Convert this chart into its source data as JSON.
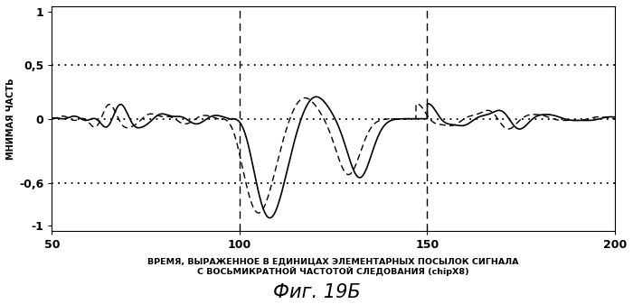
{
  "title": "Фиг. 19Б",
  "xlabel_line1": "ВРЕМЯ, ВЫРАЖЕННОЕ В ЕДИНИЦАХ ЭЛЕМЕНТАРНЫХ ПОСЫЛОК СИГНАЛА",
  "xlabel_line2": "С ВОСЬМИКРАТНОЙ ЧАСТОТОЙ СЛЕДОВАНИЯ (chipX8)",
  "ylabel": "МНИМАЯ ЧАСТЬ",
  "xlim": [
    50,
    200
  ],
  "ylim": [
    -1.05,
    1.05
  ],
  "ytick_values": [
    -1.0,
    -0.6,
    0.0,
    0.5,
    1.0
  ],
  "ytick_labels": [
    "-1",
    "-0,6",
    "0",
    "0,5",
    "1"
  ],
  "xticks": [
    50,
    100,
    150,
    200
  ],
  "dashed_vlines": [
    100,
    150
  ],
  "hline_dotted_upper": 0.5,
  "hline_dotted_lower": -0.6,
  "hline_dotted_zero": 0.0,
  "background_color": "#ffffff"
}
